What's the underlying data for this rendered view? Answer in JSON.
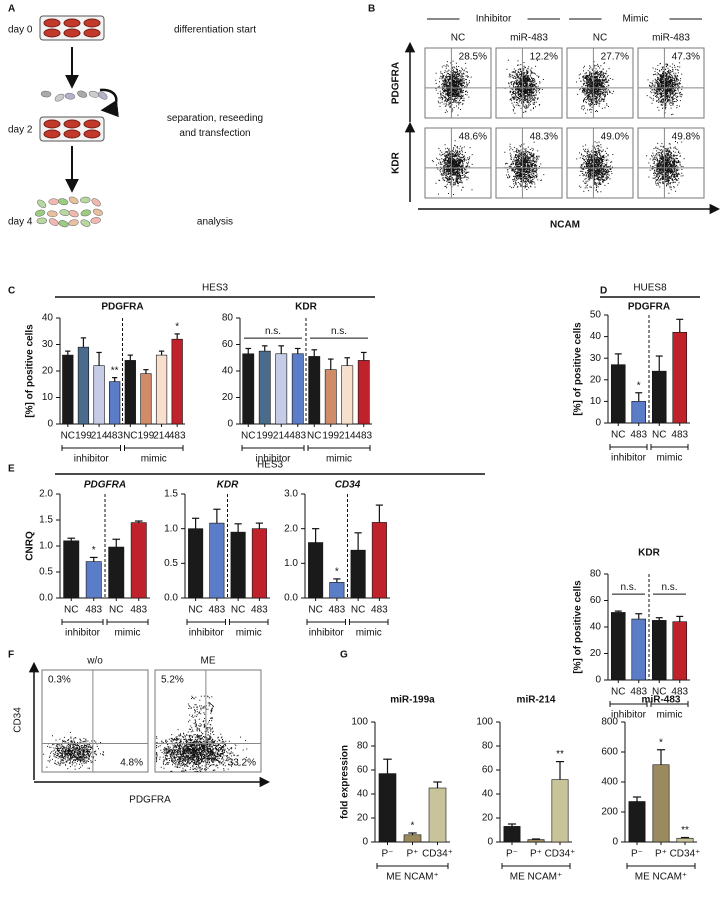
{
  "panel_letters": [
    "A",
    "B",
    "C",
    "D",
    "E",
    "F",
    "G"
  ],
  "workflow": {
    "steps": [
      {
        "day": "day 0",
        "text": [
          "differentiation start"
        ]
      },
      {
        "day": "day 2",
        "text": [
          "separation, reseeding",
          "and transfection"
        ]
      },
      {
        "day": "day 4",
        "text": [
          "analysis"
        ]
      }
    ]
  },
  "flow_b": {
    "groups": [
      "Inhibitor",
      "Mimic"
    ],
    "columns": [
      "NC",
      "miR-483",
      "NC",
      "miR-483"
    ],
    "rows": [
      {
        "label": "PDGFRA",
        "percents": [
          "28.5%",
          "12.2%",
          "27.7%",
          "47.3%"
        ]
      },
      {
        "label": "KDR",
        "percents": [
          "48.6%",
          "48.3%",
          "49.0%",
          "49.8%"
        ]
      }
    ],
    "xlabel": "NCAM"
  },
  "headers": [
    "HES3",
    "HUES8",
    "HES3"
  ],
  "chart_data": [
    {
      "type": "bar",
      "title": "PDGFRA",
      "ylabel": "[%] of positive cells",
      "ylim": [
        0,
        40
      ],
      "yticks": [
        0,
        10,
        20,
        30,
        40
      ],
      "groups": [
        {
          "label": "inhibitor",
          "categories": [
            "NC",
            "199",
            "214",
            "483"
          ],
          "values": [
            26,
            29,
            22,
            16
          ],
          "errors": [
            1.5,
            3.5,
            5,
            1.5
          ],
          "colors": [
            "#1a1a1a",
            "#4a6b8c",
            "#c6cbe6",
            "#5b7cc6"
          ],
          "stars": [
            null,
            null,
            null,
            "**"
          ]
        },
        {
          "label": "mimic",
          "categories": [
            "NC",
            "199",
            "214",
            "483"
          ],
          "values": [
            24,
            19,
            26,
            32
          ],
          "errors": [
            2,
            1.5,
            1.5,
            2
          ],
          "colors": [
            "#1a1a1a",
            "#d08b68",
            "#f6dfcc",
            "#c0222c"
          ],
          "stars": [
            null,
            null,
            null,
            "*"
          ]
        }
      ]
    },
    {
      "type": "bar",
      "title": "KDR",
      "ylim": [
        0,
        80
      ],
      "yticks": [
        0,
        20,
        40,
        60,
        80
      ],
      "groups": [
        {
          "label": "inhibitor",
          "categories": [
            "NC",
            "199",
            "214",
            "483"
          ],
          "values": [
            53,
            55,
            53,
            53
          ],
          "errors": [
            4,
            4,
            6,
            4
          ],
          "colors": [
            "#1a1a1a",
            "#4a6b8c",
            "#c6cbe6",
            "#5b7cc6"
          ],
          "note": "n.s."
        },
        {
          "label": "mimic",
          "categories": [
            "NC",
            "199",
            "214",
            "483"
          ],
          "values": [
            51,
            41,
            44,
            48
          ],
          "errors": [
            5,
            8,
            6,
            6
          ],
          "colors": [
            "#1a1a1a",
            "#d08b68",
            "#f6dfcc",
            "#c0222c"
          ],
          "note": "n.s."
        }
      ]
    },
    {
      "type": "bar",
      "title": "PDGFRA",
      "ylabel": "[%] of positive cells",
      "ylim": [
        0,
        50
      ],
      "yticks": [
        0,
        10,
        20,
        30,
        40,
        50
      ],
      "groups": [
        {
          "label": "inhibitor",
          "categories": [
            "NC",
            "483"
          ],
          "values": [
            27,
            10
          ],
          "errors": [
            5,
            4
          ],
          "colors": [
            "#1a1a1a",
            "#5b7cc6"
          ],
          "stars": [
            null,
            "*"
          ]
        },
        {
          "label": "mimic",
          "categories": [
            "NC",
            "483"
          ],
          "values": [
            24,
            42
          ],
          "errors": [
            7,
            6
          ],
          "colors": [
            "#1a1a1a",
            "#c0222c"
          ]
        }
      ]
    },
    {
      "type": "bar",
      "title": "KDR",
      "ylabel": "[%] of positive cells",
      "ylim": [
        0,
        80
      ],
      "yticks": [
        0,
        20,
        40,
        60,
        80
      ],
      "groups": [
        {
          "label": "inhibitor",
          "categories": [
            "NC",
            "483"
          ],
          "values": [
            51,
            46
          ],
          "errors": [
            1,
            4
          ],
          "colors": [
            "#1a1a1a",
            "#5b7cc6"
          ],
          "note": "n.s."
        },
        {
          "label": "mimic",
          "categories": [
            "NC",
            "483"
          ],
          "values": [
            45,
            44
          ],
          "errors": [
            2,
            4
          ],
          "colors": [
            "#1a1a1a",
            "#c0222c"
          ],
          "note": "n.s."
        }
      ]
    },
    {
      "type": "bar",
      "title": "PDGFRA",
      "title_style": "italic",
      "ylabel": "CNRQ",
      "ylim": [
        0,
        2
      ],
      "yticks": [
        {
          "value": 0,
          "label": "0.0"
        },
        0.5,
        {
          "value": 1,
          "label": "1.0"
        },
        1.5,
        {
          "value": 2,
          "label": "2.0"
        }
      ],
      "groups": [
        {
          "label": "inhibitor",
          "categories": [
            "NC",
            "483"
          ],
          "values": [
            1.1,
            0.7
          ],
          "errors": [
            0.05,
            0.08
          ],
          "colors": [
            "#1a1a1a",
            "#5b7cc6"
          ],
          "stars": [
            null,
            "*"
          ]
        },
        {
          "label": "mimic",
          "categories": [
            "NC",
            "483"
          ],
          "values": [
            0.98,
            1.45
          ],
          "errors": [
            0.15,
            0.03
          ],
          "colors": [
            "#1a1a1a",
            "#c0222c"
          ]
        }
      ]
    },
    {
      "type": "bar",
      "title": "KDR",
      "title_style": "italic",
      "ylim": [
        0,
        1.5
      ],
      "yticks": [
        {
          "value": 0,
          "label": "0.0"
        },
        0.5,
        {
          "value": 1,
          "label": "1.0"
        },
        1.5
      ],
      "groups": [
        {
          "label": "inhibitor",
          "categories": [
            "NC",
            "483"
          ],
          "values": [
            1.0,
            1.08
          ],
          "errors": [
            0.15,
            0.2
          ],
          "colors": [
            "#1a1a1a",
            "#5b7cc6"
          ]
        },
        {
          "label": "mimic",
          "categories": [
            "NC",
            "483"
          ],
          "values": [
            0.95,
            1.0
          ],
          "errors": [
            0.12,
            0.08
          ],
          "colors": [
            "#1a1a1a",
            "#c0222c"
          ]
        }
      ]
    },
    {
      "type": "bar",
      "title": "CD34",
      "title_style": "italic",
      "ylim": [
        0,
        3
      ],
      "yticks": [
        {
          "value": 0,
          "label": "0.0"
        },
        {
          "value": 1,
          "label": "1.0"
        },
        {
          "value": 2,
          "label": "2.0"
        },
        {
          "value": 3,
          "label": "3.0"
        }
      ],
      "groups": [
        {
          "label": "inhibitor",
          "categories": [
            "NC",
            "483"
          ],
          "values": [
            1.6,
            0.45
          ],
          "errors": [
            0.4,
            0.1
          ],
          "colors": [
            "#1a1a1a",
            "#5b7cc6"
          ],
          "stars": [
            null,
            "*"
          ]
        },
        {
          "label": "mimic",
          "categories": [
            "NC",
            "483"
          ],
          "values": [
            1.38,
            2.18
          ],
          "errors": [
            0.5,
            0.5
          ],
          "colors": [
            "#1a1a1a",
            "#c0222c"
          ]
        }
      ]
    },
    {
      "type": "bar",
      "title": "miR-199a",
      "ylabel": "fold expression",
      "ylim": [
        0,
        100
      ],
      "yticks": [
        0,
        20,
        40,
        60,
        80,
        100
      ],
      "groups": [
        {
          "label": "ME NCAM⁺",
          "categories": [
            "P⁻",
            "P⁺",
            "CD34⁺"
          ],
          "values": [
            57,
            6,
            45
          ],
          "errors": [
            12,
            1.5,
            5
          ],
          "colors": [
            "#1a1a1a",
            "#9a8a5e",
            "#c9c39a"
          ],
          "stars": [
            null,
            "*",
            null
          ]
        }
      ]
    },
    {
      "type": "bar",
      "title": "miR-214",
      "ylim": [
        0,
        100
      ],
      "yticks": [
        0,
        20,
        40,
        60,
        80,
        100
      ],
      "groups": [
        {
          "label": "ME NCAM⁺",
          "categories": [
            "P⁻",
            "P⁺",
            "CD34⁺"
          ],
          "values": [
            13,
            2,
            52
          ],
          "errors": [
            2,
            0.5,
            15
          ],
          "colors": [
            "#1a1a1a",
            "#9a8a5e",
            "#c9c39a"
          ],
          "stars": [
            null,
            null,
            "**"
          ]
        }
      ]
    },
    {
      "type": "bar",
      "title": "miR-483",
      "ylim": [
        0,
        800
      ],
      "yticks": [
        0,
        200,
        400,
        600,
        800
      ],
      "groups": [
        {
          "label": "ME NCAM⁺",
          "categories": [
            "P⁻",
            "P⁺",
            "CD34⁺"
          ],
          "values": [
            270,
            515,
            25
          ],
          "errors": [
            30,
            100,
            5
          ],
          "colors": [
            "#1a1a1a",
            "#9a8a5e",
            "#c9c39a"
          ],
          "stars": [
            null,
            "*",
            "**"
          ]
        }
      ]
    }
  ],
  "flow_f": {
    "ylabel": "CD34",
    "xlabel": "PDGFRA",
    "plots": [
      {
        "title": "w/o",
        "top_left": "0.3%",
        "bottom_right": "4.8%"
      },
      {
        "title": "ME",
        "top_left": "5.2%",
        "bottom_right": "33.2%"
      }
    ]
  }
}
